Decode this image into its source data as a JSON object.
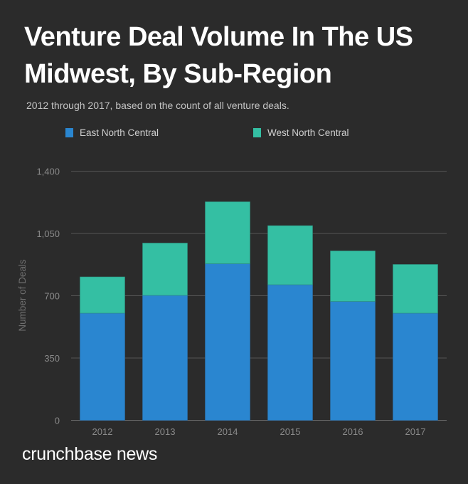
{
  "title": "Venture Deal Volume In The US Midwest, By Sub-Region",
  "subtitle": "2012 through 2017, based on the count of all venture deals.",
  "brand": "crunchbase news",
  "chart_data": {
    "type": "bar",
    "stacked": true,
    "title": "Venture Deal Volume In The US Midwest, By Sub-Region",
    "subtitle": "2012 through 2017, based on the count of all venture deals.",
    "xlabel": "",
    "ylabel": "Number of Deals",
    "categories": [
      "2012",
      "2013",
      "2014",
      "2015",
      "2016",
      "2017"
    ],
    "series": [
      {
        "name": "East North Central",
        "color": "#2a86d0",
        "values": [
          602,
          702,
          880,
          762,
          668,
          602
        ]
      },
      {
        "name": "West North Central",
        "color": "#34bfa3",
        "values": [
          204,
          294,
          348,
          332,
          284,
          274
        ]
      }
    ],
    "ylim": [
      0,
      1400
    ],
    "yticks": [
      0,
      350,
      700,
      1050,
      1400
    ],
    "ytick_labels": [
      "0",
      "350",
      "700",
      "1,050",
      "1,400"
    ],
    "grid": true,
    "legend_position": "top"
  }
}
